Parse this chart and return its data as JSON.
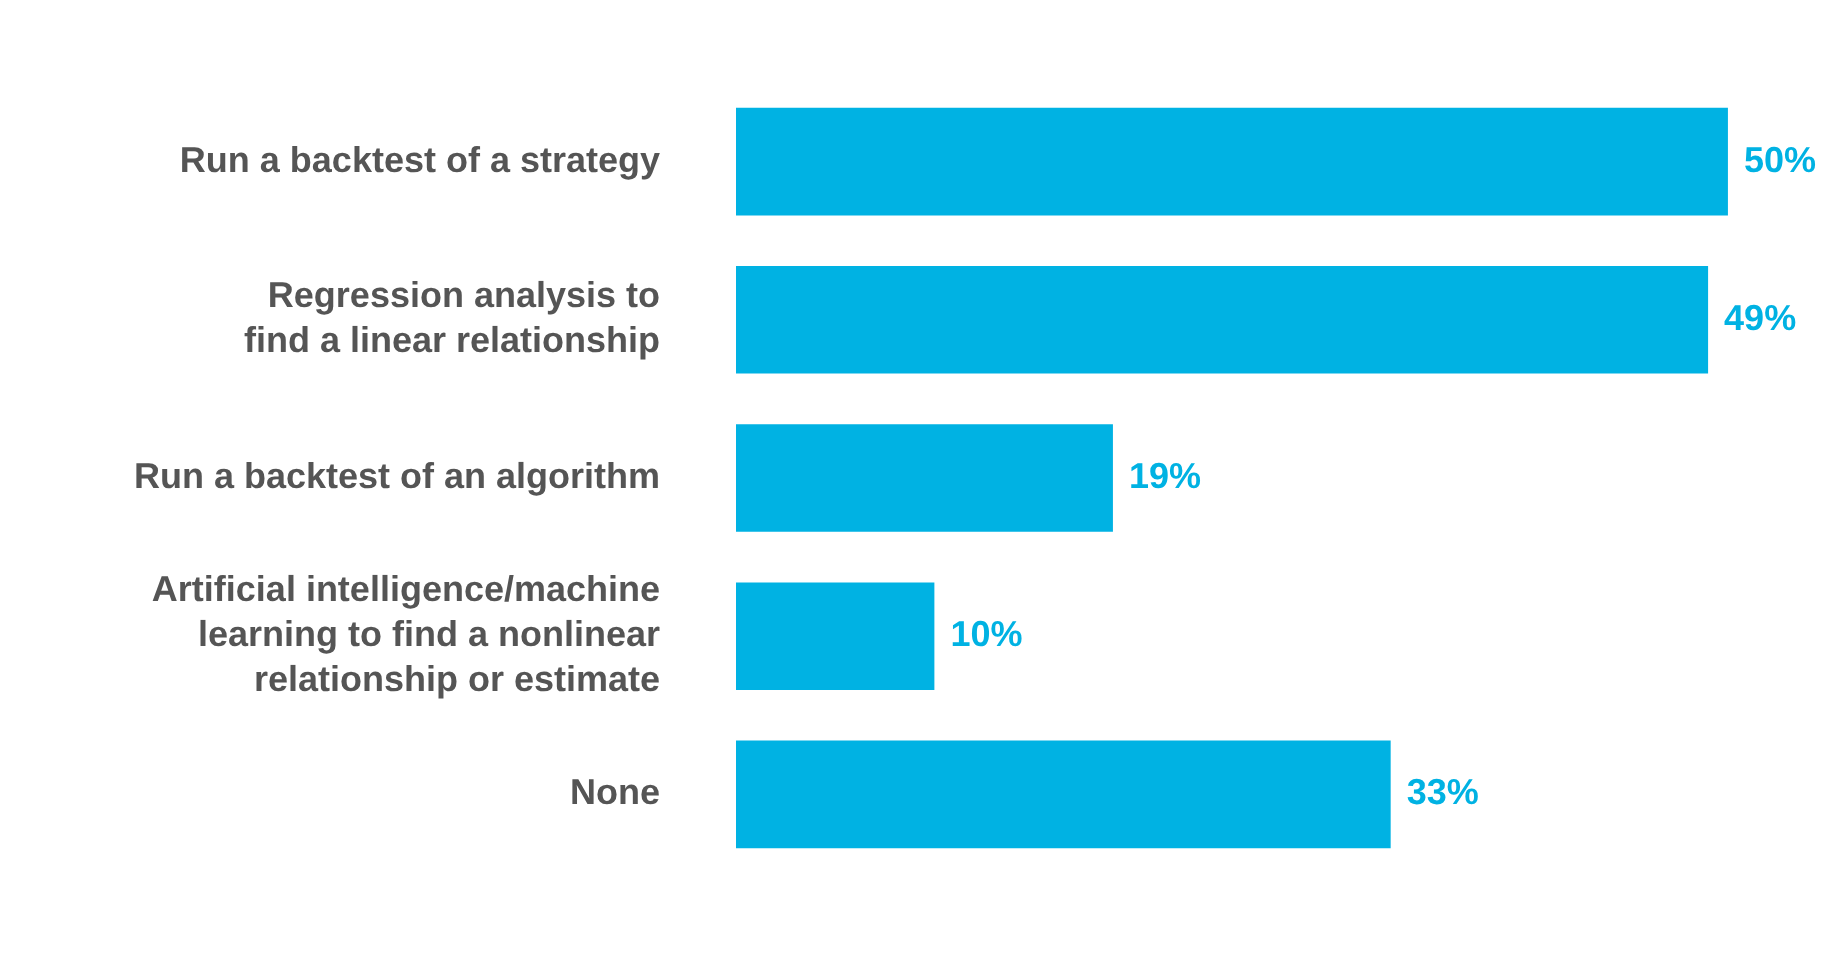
{
  "chart_data": {
    "type": "bar",
    "orientation": "horizontal",
    "categories": [
      "Run a backtest of a strategy",
      "Regression analysis to\nfind a linear relationship",
      "Run a backtest of an algorithm",
      "Artificial intelligence/machine\nlearning to find a nonlinear\nrelationship or estimate",
      "None"
    ],
    "values": [
      50,
      49,
      19,
      10,
      33
    ],
    "color": "#00b2e3",
    "value_labels": [
      "50%",
      "49%",
      "19%",
      "10%",
      "33%"
    ]
  }
}
